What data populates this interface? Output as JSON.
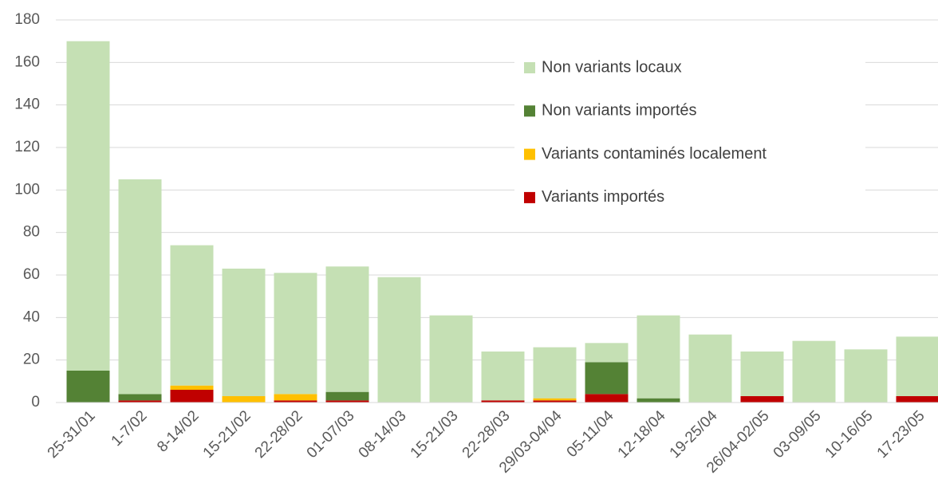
{
  "chart_data": {
    "type": "stacked_bar",
    "categories": [
      "25-31/01",
      "1-7/02",
      "8-14/02",
      "15-21/02",
      "22-28/02",
      "01-07/03",
      "08-14/03",
      "15-21/03",
      "22-28/03",
      "29/03-04/04",
      "05-11/04",
      "12-18/04",
      "19-25/04",
      "26/04-02/05",
      "03-09/05",
      "10-16/05",
      "17-23/05"
    ],
    "series": [
      {
        "name": "Non variants locaux",
        "color": "#c5e0b4",
        "values": [
          155,
          101,
          66,
          60,
          57,
          59,
          59,
          41,
          23,
          24,
          9,
          39,
          32,
          21,
          29,
          25,
          28
        ]
      },
      {
        "name": "Non variants importés",
        "color": "#548235",
        "values": [
          15,
          3,
          0,
          0,
          0,
          4,
          0,
          0,
          0,
          0,
          15,
          2,
          0,
          0,
          0,
          0,
          0
        ]
      },
      {
        "name": "Variants contaminés localement",
        "color": "#ffc000",
        "values": [
          0,
          0,
          2,
          3,
          3,
          0,
          0,
          0,
          0,
          1,
          0,
          0,
          0,
          0,
          0,
          0,
          0
        ]
      },
      {
        "name": "Variants importés",
        "color": "#c00000",
        "values": [
          0,
          1,
          6,
          0,
          1,
          1,
          0,
          0,
          1,
          1,
          4,
          0,
          0,
          3,
          0,
          0,
          3
        ]
      }
    ],
    "ylim": [
      0,
      180
    ],
    "yticks": [
      0,
      20,
      40,
      60,
      80,
      100,
      120,
      140,
      160,
      180
    ],
    "grid": true,
    "legend": "top"
  }
}
